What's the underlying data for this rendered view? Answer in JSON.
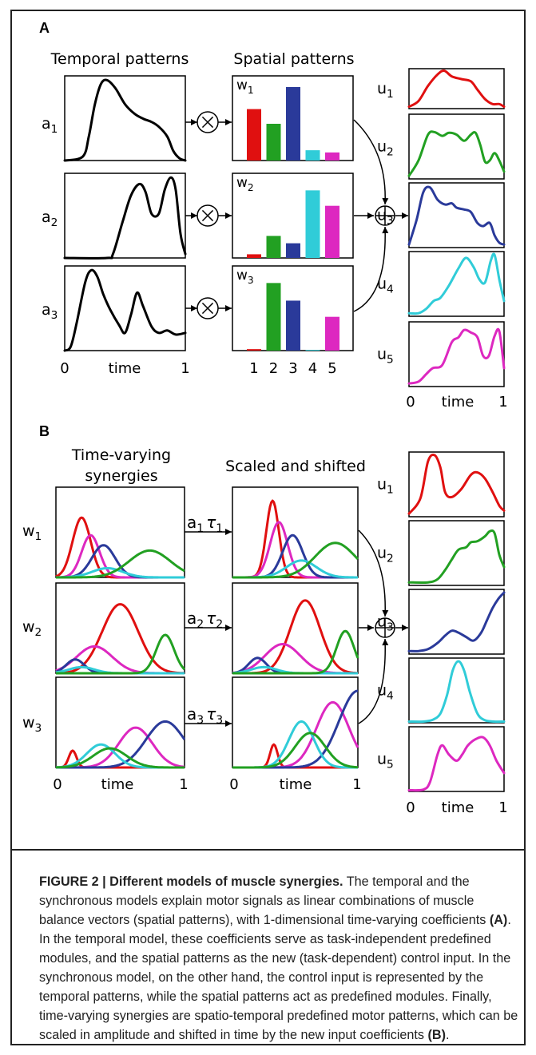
{
  "panelA": {
    "label": "A",
    "temporal_title": "Temporal patterns",
    "spatial_title": "Spatial patterns",
    "a_labels": [
      "a",
      "a",
      "a"
    ],
    "a_subs": [
      "1",
      "2",
      "3"
    ],
    "w_labels": [
      "w",
      "w",
      "w"
    ],
    "w_subs": [
      "1",
      "2",
      "3"
    ],
    "u_labels": [
      "u",
      "u",
      "u",
      "u",
      "u"
    ],
    "u_subs": [
      "1",
      "2",
      "3",
      "4",
      "5"
    ],
    "x_left_ticks": [
      "0",
      "time",
      "1"
    ],
    "muscle_ticks": [
      "1",
      "2",
      "3",
      "4",
      "5"
    ],
    "x_right_ticks": [
      "0",
      "time",
      "1"
    ],
    "bar_values": [
      [
        0.7,
        0.5,
        1.0,
        0.14,
        0.11
      ],
      [
        0.05,
        0.3,
        0.2,
        0.92,
        0.71
      ],
      [
        0.02,
        0.92,
        0.68,
        0.01,
        0.46
      ]
    ],
    "temporal_curves": [
      {
        "x": [
          0,
          0.15,
          0.2,
          0.25,
          0.3,
          0.35,
          0.42,
          0.5,
          0.58,
          0.65,
          0.72,
          0.78,
          0.85,
          0.9,
          0.95,
          1
        ],
        "y": [
          0,
          0.05,
          0.3,
          0.7,
          0.95,
          1,
          0.9,
          0.7,
          0.58,
          0.52,
          0.48,
          0.42,
          0.3,
          0.12,
          0.03,
          0
        ]
      },
      {
        "x": [
          0,
          0.35,
          0.4,
          0.48,
          0.55,
          0.62,
          0.67,
          0.72,
          0.78,
          0.83,
          0.88,
          0.92,
          0.96,
          1
        ],
        "y": [
          0,
          0,
          0.05,
          0.45,
          0.78,
          0.92,
          0.82,
          0.55,
          0.55,
          0.85,
          1,
          0.85,
          0.3,
          0.05
        ]
      },
      {
        "x": [
          0,
          0.05,
          0.1,
          0.17,
          0.22,
          0.27,
          0.32,
          0.38,
          0.45,
          0.5,
          0.55,
          0.6,
          0.65,
          0.72,
          0.78,
          0.85,
          0.92,
          1
        ],
        "y": [
          0,
          0.05,
          0.35,
          0.85,
          1,
          0.92,
          0.7,
          0.5,
          0.32,
          0.22,
          0.45,
          0.72,
          0.55,
          0.3,
          0.22,
          0.25,
          0.2,
          0.22
        ]
      }
    ],
    "outputs": [
      {
        "color": "#e01010",
        "x": [
          0,
          0.1,
          0.2,
          0.3,
          0.37,
          0.45,
          0.55,
          0.65,
          0.72,
          0.8,
          0.88,
          0.95,
          1
        ],
        "y": [
          0.05,
          0.2,
          0.6,
          0.9,
          1,
          0.85,
          0.78,
          0.72,
          0.5,
          0.25,
          0.12,
          0.12,
          0.05
        ]
      },
      {
        "color": "#22a022",
        "x": [
          0,
          0.1,
          0.2,
          0.27,
          0.35,
          0.42,
          0.5,
          0.58,
          0.65,
          0.7,
          0.75,
          0.8,
          0.85,
          0.9,
          0.95,
          1
        ],
        "y": [
          0.05,
          0.3,
          0.72,
          0.76,
          0.7,
          0.75,
          0.72,
          0.62,
          0.72,
          0.75,
          0.55,
          0.28,
          0.3,
          0.42,
          0.3,
          0.12
        ]
      },
      {
        "color": "#2a3a9a",
        "x": [
          0,
          0.08,
          0.15,
          0.22,
          0.3,
          0.38,
          0.45,
          0.5,
          0.58,
          0.65,
          0.72,
          0.78,
          0.85,
          0.9,
          0.95,
          1
        ],
        "y": [
          0.05,
          0.45,
          0.9,
          0.98,
          0.78,
          0.7,
          0.72,
          0.65,
          0.62,
          0.58,
          0.4,
          0.35,
          0.4,
          0.2,
          0.08,
          0.05
        ]
      },
      {
        "color": "#30ccd8",
        "x": [
          0,
          0.1,
          0.18,
          0.26,
          0.33,
          0.42,
          0.52,
          0.6,
          0.68,
          0.74,
          0.8,
          0.86,
          0.9,
          0.95,
          1
        ],
        "y": [
          0.05,
          0.05,
          0.12,
          0.25,
          0.3,
          0.5,
          0.78,
          0.95,
          0.8,
          0.6,
          0.55,
          0.9,
          1,
          0.6,
          0.25
        ]
      },
      {
        "color": "#dd28c0",
        "x": [
          0,
          0.1,
          0.18,
          0.25,
          0.35,
          0.45,
          0.52,
          0.58,
          0.65,
          0.72,
          0.78,
          0.84,
          0.9,
          0.95,
          1
        ],
        "y": [
          0.05,
          0.08,
          0.2,
          0.3,
          0.35,
          0.72,
          0.8,
          0.92,
          0.88,
          0.8,
          0.5,
          0.5,
          0.82,
          0.9,
          0.3
        ]
      }
    ]
  },
  "panelB": {
    "label": "B",
    "tv_title_1": "Time-varying",
    "tv_title_2": "synergies",
    "ss_title": "Scaled and shifted",
    "w_labels": [
      "w",
      "w",
      "w"
    ],
    "w_subs": [
      "1",
      "2",
      "3"
    ],
    "coef_a": [
      "a",
      "a",
      "a"
    ],
    "coef_a_subs": [
      "1",
      "2",
      "3"
    ],
    "coef_tau": [
      "τ",
      "τ",
      "τ"
    ],
    "coef_tau_subs": [
      "1",
      "2",
      "3"
    ],
    "u_labels": [
      "u",
      "u",
      "u",
      "u",
      "u"
    ],
    "u_subs": [
      "1",
      "2",
      "3",
      "4",
      "5"
    ],
    "x_ticks": [
      "0",
      "time",
      "1"
    ],
    "x_mid_ticks": [
      "0",
      "time",
      "1"
    ],
    "x_right_ticks": [
      "0",
      "time",
      "1"
    ],
    "synergy_colors": [
      "#e01010",
      "#dd28c0",
      "#2a3a9a",
      "#30ccd8",
      "#22a022"
    ],
    "synergies": [
      [
        [
          0.2,
          0.07,
          0.78
        ],
        [
          0.27,
          0.07,
          0.55
        ],
        [
          0.37,
          0.09,
          0.42
        ],
        [
          0.4,
          0.12,
          0.12
        ],
        [
          0.73,
          0.16,
          0.35
        ]
      ],
      [
        [
          0.5,
          0.14,
          0.9
        ],
        [
          0.3,
          0.14,
          0.35
        ],
        [
          0.15,
          0.07,
          0.18
        ],
        [
          0.2,
          0.1,
          0.08
        ],
        [
          0.85,
          0.07,
          0.5
        ]
      ],
      [
        [
          0.13,
          0.03,
          0.22
        ],
        [
          0.62,
          0.13,
          0.52
        ],
        [
          0.85,
          0.15,
          0.6
        ],
        [
          0.35,
          0.11,
          0.3
        ],
        [
          0.42,
          0.13,
          0.25
        ]
      ]
    ],
    "scaled": [
      [
        [
          0.32,
          0.05,
          1.0
        ],
        [
          0.37,
          0.07,
          0.72
        ],
        [
          0.48,
          0.08,
          0.55
        ],
        [
          0.55,
          0.12,
          0.22
        ],
        [
          0.82,
          0.16,
          0.45
        ]
      ],
      [
        [
          0.58,
          0.12,
          0.95
        ],
        [
          0.4,
          0.14,
          0.38
        ],
        [
          0.2,
          0.07,
          0.2
        ],
        [
          0.25,
          0.1,
          0.08
        ],
        [
          0.9,
          0.07,
          0.55
        ]
      ],
      [
        [
          0.33,
          0.03,
          0.3
        ],
        [
          0.8,
          0.13,
          0.85
        ],
        [
          1.0,
          0.15,
          1.0
        ],
        [
          0.55,
          0.1,
          0.6
        ],
        [
          0.62,
          0.12,
          0.45
        ]
      ]
    ],
    "outputs": [
      {
        "color": "#e01010",
        "x": [
          0,
          0.12,
          0.2,
          0.27,
          0.33,
          0.38,
          0.45,
          0.55,
          0.65,
          0.72,
          0.8,
          0.88,
          0.95,
          1
        ],
        "y": [
          0.05,
          0.3,
          0.9,
          1,
          0.8,
          0.4,
          0.32,
          0.45,
          0.68,
          0.72,
          0.62,
          0.4,
          0.18,
          0.1
        ]
      },
      {
        "color": "#22a022",
        "x": [
          0,
          0.2,
          0.3,
          0.38,
          0.45,
          0.52,
          0.6,
          0.65,
          0.72,
          0.8,
          0.85,
          0.9,
          0.95,
          1
        ],
        "y": [
          0.05,
          0.05,
          0.1,
          0.25,
          0.42,
          0.58,
          0.62,
          0.7,
          0.72,
          0.8,
          0.88,
          0.85,
          0.5,
          0.3
        ]
      },
      {
        "color": "#2a3a9a",
        "x": [
          0,
          0.1,
          0.2,
          0.3,
          0.38,
          0.45,
          0.52,
          0.6,
          0.68,
          0.76,
          0.82,
          0.88,
          0.94,
          1
        ],
        "y": [
          0.05,
          0.05,
          0.08,
          0.18,
          0.3,
          0.38,
          0.35,
          0.28,
          0.22,
          0.35,
          0.55,
          0.75,
          0.9,
          1
        ]
      },
      {
        "color": "#30ccd8",
        "x": [
          0,
          0.15,
          0.25,
          0.33,
          0.4,
          0.46,
          0.52,
          0.58,
          0.64,
          0.72,
          0.8,
          0.9,
          1
        ],
        "y": [
          0.02,
          0.02,
          0.05,
          0.15,
          0.45,
          0.85,
          1,
          0.85,
          0.5,
          0.15,
          0.04,
          0.02,
          0.02
        ]
      },
      {
        "color": "#dd28c0",
        "x": [
          0,
          0.15,
          0.22,
          0.3,
          0.35,
          0.42,
          0.5,
          0.56,
          0.62,
          0.7,
          0.78,
          0.85,
          0.92,
          1
        ],
        "y": [
          0.02,
          0.03,
          0.15,
          0.6,
          0.75,
          0.6,
          0.5,
          0.6,
          0.75,
          0.85,
          0.88,
          0.75,
          0.5,
          0.3
        ]
      }
    ]
  },
  "caption": {
    "label": "FIGURE 2 | Different models of muscle synergies.",
    "text_1": " The temporal and the synchronous models explain motor signals as linear combinations of muscle balance vectors (spatial patterns), with 1-dimensional time-varying coefficients ",
    "ref_a": "(A)",
    "text_2": ". In the temporal model, these coefficients serve as task-independent predefined modules, and the spatial patterns as the new (task-dependent) control input. In the synchronous model, on the other hand, the control input is represented by the temporal patterns, while the spatial patterns act as predefined modules. Finally, time-varying synergies are spatio-temporal predefined motor patterns, which can be scaled in amplitude and shifted in time by the new input coefficients ",
    "ref_b": "(B)",
    "text_3": "."
  },
  "colors": {
    "bars": [
      "#e01010",
      "#22a022",
      "#2a3a9a",
      "#30ccd8",
      "#dd28c0"
    ]
  }
}
